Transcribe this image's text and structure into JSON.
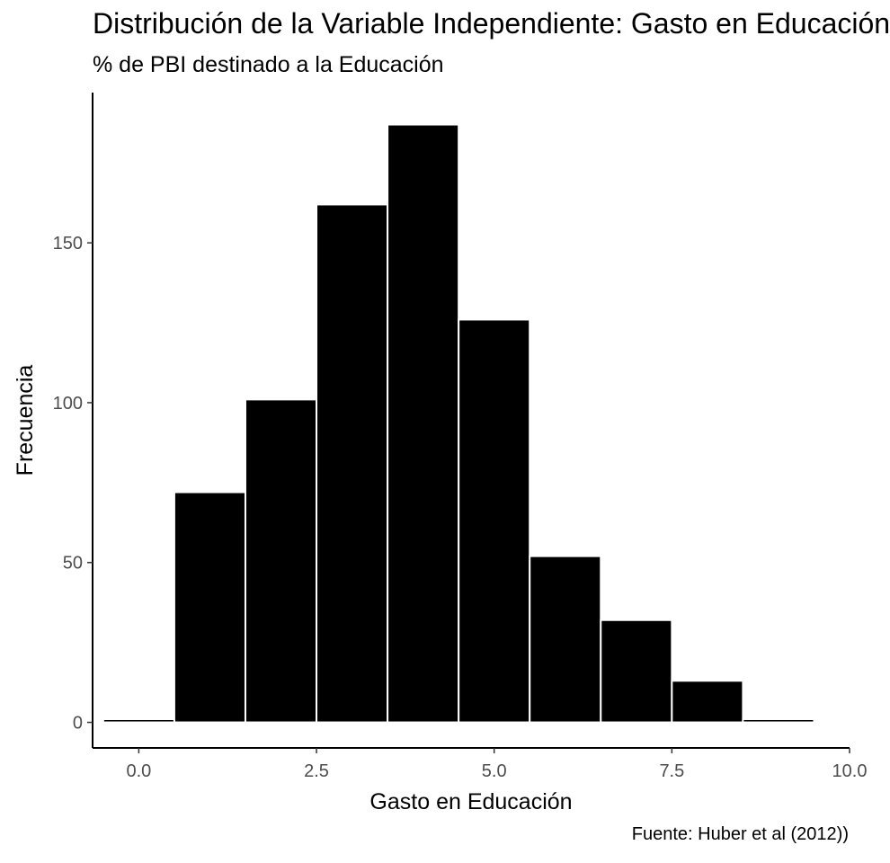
{
  "title": "Distribución de la Variable Independiente: Gasto en Educación",
  "subtitle": "% de PBI destinado a la Educación",
  "caption": "Fuente: Huber et al (2012))",
  "chart_data": {
    "type": "bar",
    "subtype": "histogram",
    "title": "Distribución de la Variable Independiente: Gasto en Educación",
    "subtitle": "% de PBI destinado a la Educación",
    "xlabel": "Gasto en Educación",
    "ylabel": "Frecuencia",
    "bin_width": 1,
    "bin_centers": [
      0,
      1,
      2,
      3,
      4,
      5,
      6,
      7,
      8,
      9
    ],
    "values": [
      1,
      72,
      101,
      162,
      187,
      126,
      52,
      32,
      13,
      1
    ],
    "xlim": [
      -0.65,
      10.0
    ],
    "ylim": [
      -8,
      197
    ],
    "x_ticks": [
      0.0,
      2.5,
      5.0,
      7.5,
      10.0
    ],
    "x_tick_labels": [
      "0.0",
      "2.5",
      "5.0",
      "7.5",
      "10.0"
    ],
    "y_ticks": [
      0,
      50,
      100,
      150
    ],
    "y_tick_labels": [
      "0",
      "50",
      "100",
      "150"
    ],
    "bar_color": "#000000",
    "bar_outline": "#ffffff",
    "grid": false,
    "legend": "none"
  }
}
